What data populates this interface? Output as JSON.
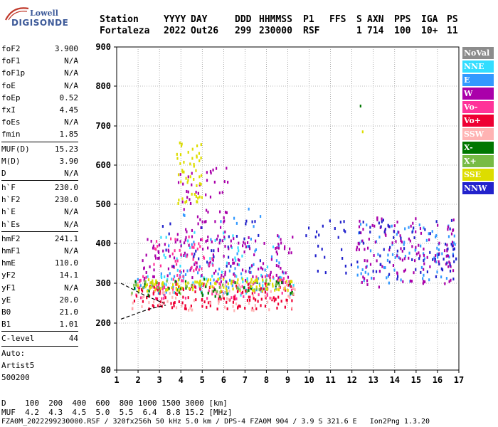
{
  "logo": {
    "line1": "Lowell",
    "line2": "DIGISONDE"
  },
  "header": {
    "labels": [
      "Station",
      "YYYY",
      "DAY",
      "DDD",
      "HHMMSS",
      "P1",
      "FFS",
      "S",
      "AXN",
      "PPS",
      "IGA",
      "PS"
    ],
    "values": [
      "Fortaleza",
      "2022",
      "Out26",
      "299",
      "230000",
      "RSF",
      "",
      "1",
      "714",
      "100",
      "10+",
      "11"
    ]
  },
  "params": {
    "group1": [
      {
        "name": "foF2",
        "value": "3.900"
      },
      {
        "name": "foF1",
        "value": "N/A"
      },
      {
        "name": "foF1p",
        "value": "N/A"
      },
      {
        "name": "foE",
        "value": "N/A"
      },
      {
        "name": "foEp",
        "value": "0.52"
      },
      {
        "name": "fxI",
        "value": "4.45"
      },
      {
        "name": "foEs",
        "value": "N/A"
      },
      {
        "name": "fmin",
        "value": "1.85"
      }
    ],
    "group2": [
      {
        "name": "MUF(D)",
        "value": "15.23"
      },
      {
        "name": "M(D)",
        "value": "3.90"
      },
      {
        "name": "D",
        "value": "N/A"
      }
    ],
    "group3": [
      {
        "name": "h`F",
        "value": "230.0"
      },
      {
        "name": "h`F2",
        "value": "230.0"
      },
      {
        "name": "h`E",
        "value": "N/A"
      },
      {
        "name": "h`Es",
        "value": "N/A"
      }
    ],
    "group4": [
      {
        "name": "hmF2",
        "value": "241.1"
      },
      {
        "name": "hmF1",
        "value": "N/A"
      },
      {
        "name": "hmE",
        "value": "110.0"
      },
      {
        "name": "yF2",
        "value": "14.1"
      },
      {
        "name": "yF1",
        "value": "N/A"
      },
      {
        "name": "yE",
        "value": "20.0"
      },
      {
        "name": "B0",
        "value": "21.0"
      },
      {
        "name": "B1",
        "value": "1.01"
      }
    ],
    "group5": [
      {
        "name": "C-level",
        "value": "44"
      }
    ],
    "auto": [
      "Auto:",
      "Artist5",
      "500200"
    ]
  },
  "footer": {
    "d_row": "D    100  200  400  600  800 1000 1500 3000 [km]",
    "muf_row": "MUF  4.2  4.3  4.5  5.0  5.5  6.4  8.8 15.2 [MHz]",
    "file_row": "FZA0M_2022299230000.RSF / 320fx256h 50 kHz 5.0 km / DPS-4 FZA0M 904 / 3.9 S 321.6 E   Ion2Png 1.3.20"
  },
  "legend": [
    {
      "label": "NoVal",
      "color": "#8c8c8c"
    },
    {
      "label": "NNE",
      "color": "#33ddff"
    },
    {
      "label": "E",
      "color": "#3399ff"
    },
    {
      "label": "W",
      "color": "#aa00aa"
    },
    {
      "label": "Vo-",
      "color": "#ff3399"
    },
    {
      "label": "Vo+",
      "color": "#ee0033"
    },
    {
      "label": "SSW",
      "color": "#ffb3b3"
    },
    {
      "label": "X-",
      "color": "#007700"
    },
    {
      "label": "X+",
      "color": "#77bb44"
    },
    {
      "label": "SSE",
      "color": "#dddd00"
    },
    {
      "label": "NNW",
      "color": "#2222cc"
    }
  ],
  "chart_data": {
    "type": "scatter",
    "x_ticks": [
      1,
      2,
      3,
      4,
      5,
      6,
      7,
      8,
      9,
      10,
      11,
      12,
      13,
      14,
      15,
      16,
      17
    ],
    "y_ticks": [
      80,
      200,
      300,
      400,
      500,
      600,
      700,
      800,
      900
    ],
    "xlim": [
      1,
      17
    ],
    "ylim": [
      80,
      900
    ],
    "grid": true,
    "series": [
      {
        "name": "NoVal",
        "clusters": []
      },
      {
        "name": "NNE",
        "clusters": [
          {
            "x": [
              1.8,
              9.3
            ],
            "y": [
              270,
              320
            ],
            "n": 60
          },
          {
            "x": [
              2.5,
              8.5
            ],
            "y": [
              300,
              430
            ],
            "n": 40
          }
        ]
      },
      {
        "name": "E",
        "clusters": [
          {
            "x": [
              1.8,
              9.3
            ],
            "y": [
              270,
              330
            ],
            "n": 40
          },
          {
            "x": [
              12.2,
              16.9
            ],
            "y": [
              300,
              450
            ],
            "n": 80
          },
          {
            "x": [
              3.4,
              8.8
            ],
            "y": [
              330,
              500
            ],
            "n": 30
          }
        ]
      },
      {
        "name": "W",
        "clusters": [
          {
            "x": [
              2.2,
              9.3
            ],
            "y": [
              300,
              420
            ],
            "n": 150
          },
          {
            "x": [
              3.8,
              6.2
            ],
            "y": [
              400,
              600
            ],
            "n": 60
          },
          {
            "x": [
              12.2,
              16.9
            ],
            "y": [
              290,
              470
            ],
            "n": 120
          }
        ]
      },
      {
        "name": "Vo-",
        "clusters": [
          {
            "x": [
              1.8,
              9.3
            ],
            "y": [
              260,
              320
            ],
            "n": 80
          },
          {
            "x": [
              2.5,
              5.5
            ],
            "y": [
              330,
              420
            ],
            "n": 40
          }
        ]
      },
      {
        "name": "Vo+",
        "clusters": [
          {
            "x": [
              1.7,
              9.3
            ],
            "y": [
              235,
              300
            ],
            "n": 140
          }
        ]
      },
      {
        "name": "SSW",
        "clusters": [
          {
            "x": [
              1.6,
              9.5
            ],
            "y": [
              230,
              300
            ],
            "n": 80
          }
        ]
      },
      {
        "name": "X-",
        "clusters": [
          {
            "x": [
              1.7,
              9.3
            ],
            "y": [
              265,
              310
            ],
            "n": 40
          },
          {
            "x": [
              12.4,
              12.4
            ],
            "y": [
              750,
              750
            ],
            "n": 1
          }
        ]
      },
      {
        "name": "X+",
        "clusters": [
          {
            "x": [
              1.7,
              9.3
            ],
            "y": [
              270,
              310
            ],
            "n": 40
          }
        ]
      },
      {
        "name": "SSE",
        "clusters": [
          {
            "x": [
              2,
              9.3
            ],
            "y": [
              280,
              310
            ],
            "n": 100
          },
          {
            "x": [
              3.8,
              5
            ],
            "y": [
              500,
              660
            ],
            "n": 50
          },
          {
            "x": [
              12.5,
              12.5
            ],
            "y": [
              685,
              685
            ],
            "n": 1
          }
        ]
      },
      {
        "name": "NNW",
        "clusters": [
          {
            "x": [
              9.8,
              16.9
            ],
            "y": [
              310,
              460
            ],
            "n": 90
          },
          {
            "x": [
              3,
              8
            ],
            "y": [
              330,
              470
            ],
            "n": 30
          }
        ]
      }
    ],
    "trace_lines": [
      {
        "x": [
          1.2,
          2.5,
          3.3
        ],
        "y": [
          210,
          235,
          245
        ]
      },
      {
        "x": [
          1.2,
          2.3,
          3.2
        ],
        "y": [
          300,
          270,
          250
        ]
      }
    ]
  }
}
